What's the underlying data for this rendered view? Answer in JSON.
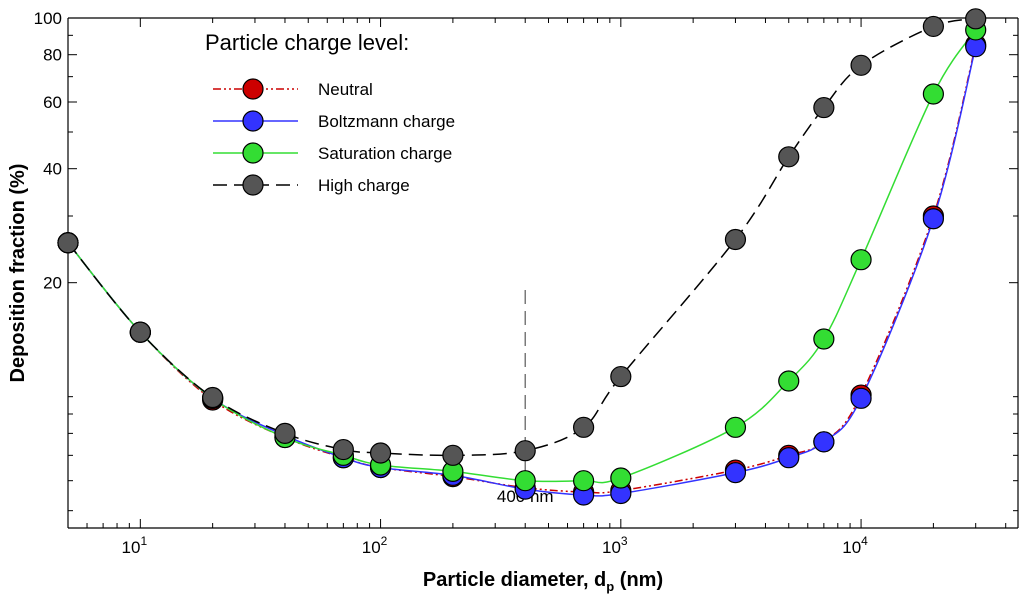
{
  "chart_data": {
    "type": "line",
    "title": "",
    "xlabel_main": "Particle diameter, d",
    "xlabel_sub": "p",
    "xlabel_unit": " (nm)",
    "ylabel": "Deposition fraction (%)",
    "x_scale": "log",
    "y_scale": "log",
    "xlim": [
      5,
      45000
    ],
    "ylim": [
      4.5,
      100
    ],
    "x_ticks": [
      {
        "value": 10,
        "base": "10",
        "exp": "1"
      },
      {
        "value": 100,
        "base": "10",
        "exp": "2"
      },
      {
        "value": 1000,
        "base": "10",
        "exp": "3"
      },
      {
        "value": 10000,
        "base": "10",
        "exp": "4"
      }
    ],
    "y_ticks": [
      {
        "value": 20,
        "label": "20"
      },
      {
        "value": 40,
        "label": "40"
      },
      {
        "value": 60,
        "label": "60"
      },
      {
        "value": 80,
        "label": "80"
      },
      {
        "value": 100,
        "label": "100"
      }
    ],
    "legend_title": "Particle charge level:",
    "legend_position": "top-left",
    "annotation": {
      "x": 400,
      "label": "400 nm"
    },
    "series": [
      {
        "name": "Neutral",
        "color": "#cc0000",
        "line_color": "#cc0000",
        "dash": "8,3,2,3,2,3",
        "x": [
          5,
          10,
          20,
          40,
          70,
          100,
          200,
          400,
          700,
          1000,
          3000,
          5000,
          7000,
          10000,
          20000,
          30000
        ],
        "y": [
          25.5,
          14.8,
          9.8,
          7.8,
          6.9,
          6.5,
          6.15,
          5.75,
          5.6,
          5.65,
          6.4,
          7.0,
          7.6,
          10.1,
          30,
          85
        ]
      },
      {
        "name": "Boltzmann charge",
        "color": "#3333ff",
        "line_color": "#3333ff",
        "dash": "",
        "x": [
          5,
          10,
          20,
          40,
          70,
          100,
          200,
          400,
          700,
          1000,
          3000,
          5000,
          7000,
          10000,
          20000,
          30000
        ],
        "y": [
          25.5,
          14.8,
          9.9,
          7.9,
          6.9,
          6.5,
          6.2,
          5.7,
          5.5,
          5.55,
          6.3,
          6.9,
          7.6,
          9.9,
          29.5,
          84
        ]
      },
      {
        "name": "Saturation charge",
        "color": "#33dd33",
        "line_color": "#33dd33",
        "dash": "",
        "x": [
          5,
          10,
          20,
          40,
          70,
          100,
          200,
          400,
          700,
          1000,
          3000,
          5000,
          7000,
          10000,
          20000,
          30000
        ],
        "y": [
          25.5,
          14.8,
          9.9,
          7.8,
          7.0,
          6.6,
          6.35,
          6.0,
          6.0,
          6.1,
          8.3,
          11.0,
          14.2,
          23.0,
          63,
          93
        ]
      },
      {
        "name": "High charge",
        "color": "#555555",
        "line_color": "#000000",
        "dash": "14,7",
        "x": [
          5,
          10,
          20,
          40,
          70,
          100,
          200,
          400,
          700,
          1000,
          3000,
          5000,
          7000,
          10000,
          20000,
          30000
        ],
        "y": [
          25.5,
          14.8,
          9.95,
          8.0,
          7.25,
          7.1,
          7.0,
          7.2,
          8.3,
          11.3,
          26.0,
          43.0,
          58.0,
          75.0,
          95.0,
          99.5
        ]
      }
    ]
  }
}
